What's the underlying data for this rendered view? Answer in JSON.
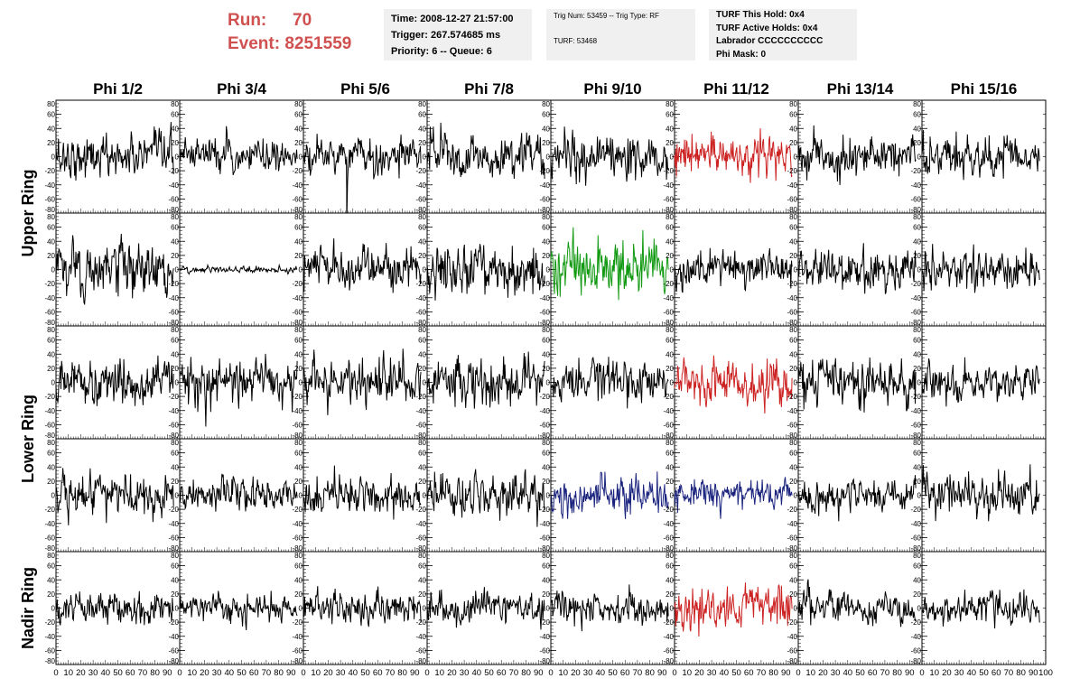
{
  "header": {
    "run_label": "Run:",
    "run_value": "70",
    "event_label": "Event:",
    "event_value": "8251559",
    "time_line": "Time: 2008-12-27 21:57:00",
    "trigger_line": "Trigger: 267.574685 ms",
    "priority_line": "Priority: 6 -- Queue: 6",
    "trig_num_line": "Trig Num: 53459 -- Trig Type: RF",
    "turf_line": "TURF: 53468",
    "turf_this_hold": "TURF This Hold: 0x4",
    "turf_active_holds": "TURF Active Holds: 0x4",
    "labrador": "Labrador CCCCCCCCCC",
    "phi_mask": "Phi Mask: 0"
  },
  "chart_data": {
    "type": "line",
    "columns": [
      "Phi 1/2",
      "Phi 3/4",
      "Phi 5/6",
      "Phi 7/8",
      "Phi 9/10",
      "Phi 11/12",
      "Phi 13/14",
      "Phi 15/16"
    ],
    "row_groups": [
      {
        "label": "Upper Ring",
        "rows": [
          0,
          1
        ]
      },
      {
        "label": "Lower Ring",
        "rows": [
          2,
          3
        ]
      },
      {
        "label": "Nadir Ring",
        "rows": [
          4
        ]
      }
    ],
    "rows": 5,
    "xlim": [
      0,
      100
    ],
    "ylim": [
      -80,
      80
    ],
    "x_ticks": [
      "0",
      "10",
      "20",
      "30",
      "40",
      "50",
      "60",
      "70",
      "80",
      "90",
      "100"
    ],
    "y_ticks": [
      "80",
      "60",
      "40",
      "20",
      "0",
      "-20",
      "-40",
      "-60",
      "-80"
    ],
    "trace_x_range": [
      0,
      95
    ],
    "colors": {
      "default": "#000000",
      "red": "#cc2222",
      "green": "#119911",
      "blue": "#1a237e"
    },
    "panels": [
      [
        {
          "amp": 14,
          "color": "default"
        },
        {
          "amp": 11,
          "color": "default"
        },
        {
          "amp": 12,
          "color": "default",
          "spike": {
            "x": 35,
            "y": -80
          }
        },
        {
          "amp": 14,
          "color": "default"
        },
        {
          "amp": 14,
          "color": "default"
        },
        {
          "amp": 14,
          "color": "red"
        },
        {
          "amp": 13,
          "color": "default"
        },
        {
          "amp": 14,
          "color": "default"
        }
      ],
      [
        {
          "amp": 18,
          "color": "default"
        },
        {
          "amp": 2,
          "color": "default"
        },
        {
          "amp": 16,
          "color": "default"
        },
        {
          "amp": 18,
          "color": "default"
        },
        {
          "amp": 18,
          "color": "green"
        },
        {
          "amp": 12,
          "color": "default"
        },
        {
          "amp": 14,
          "color": "default"
        },
        {
          "amp": 14,
          "color": "default"
        }
      ],
      [
        {
          "amp": 15,
          "color": "default"
        },
        {
          "amp": 15,
          "color": "default"
        },
        {
          "amp": 16,
          "color": "default"
        },
        {
          "amp": 16,
          "color": "default"
        },
        {
          "amp": 14,
          "color": "default"
        },
        {
          "amp": 15,
          "color": "red"
        },
        {
          "amp": 16,
          "color": "default"
        },
        {
          "amp": 12,
          "color": "default"
        }
      ],
      [
        {
          "amp": 14,
          "color": "default"
        },
        {
          "amp": 12,
          "color": "default"
        },
        {
          "amp": 13,
          "color": "default"
        },
        {
          "amp": 14,
          "color": "default"
        },
        {
          "amp": 12,
          "color": "blue"
        },
        {
          "amp": 10,
          "color": "blue"
        },
        {
          "amp": 11,
          "color": "default"
        },
        {
          "amp": 14,
          "color": "default"
        }
      ],
      [
        {
          "amp": 10,
          "color": "default"
        },
        {
          "amp": 9,
          "color": "default"
        },
        {
          "amp": 10,
          "color": "default"
        },
        {
          "amp": 11,
          "color": "default"
        },
        {
          "amp": 10,
          "color": "default"
        },
        {
          "amp": 14,
          "color": "red"
        },
        {
          "amp": 10,
          "color": "default"
        },
        {
          "amp": 10,
          "color": "default"
        }
      ]
    ]
  }
}
